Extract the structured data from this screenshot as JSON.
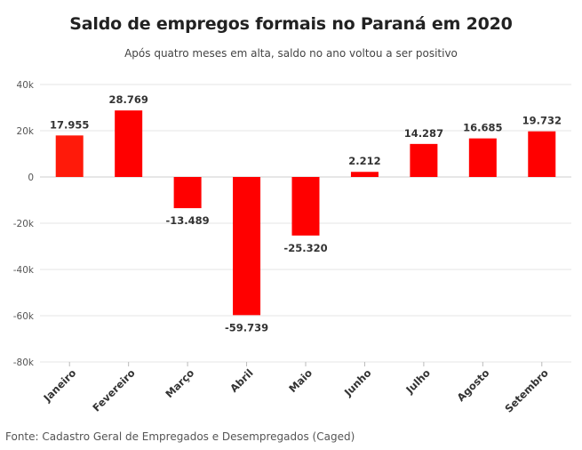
{
  "chart_data": {
    "type": "bar",
    "title": "Saldo de empregos formais no Paraná em 2020",
    "subtitle": "Após quatro meses em alta, saldo no ano voltou a ser positivo",
    "categories": [
      "Janeiro",
      "Fevereiro",
      "Março",
      "Abril",
      "Maio",
      "Junho",
      "Julho",
      "Agosto",
      "Setembro"
    ],
    "values": [
      17955,
      28769,
      -13489,
      -59739,
      -25320,
      2212,
      14287,
      16685,
      19732
    ],
    "data_labels": [
      "17.955",
      "28.769",
      "-13.489",
      "-59.739",
      "-25.320",
      "2.212",
      "14.287",
      "16.685",
      "19.732"
    ],
    "ylim": [
      -80000,
      40000
    ],
    "yticks": [
      40000,
      20000,
      0,
      -20000,
      -40000,
      -60000,
      -80000
    ],
    "ytick_labels": [
      "40k",
      "20k",
      "0",
      "-20k",
      "-40k",
      "-60k",
      "-80k"
    ],
    "xlabel": "",
    "ylabel": "",
    "grid": true,
    "bar_color": "#ff0000",
    "first_bar_color": "#ff1a0a"
  },
  "source": "Fonte: Cadastro Geral de Empregados e Desempregados (Caged)"
}
